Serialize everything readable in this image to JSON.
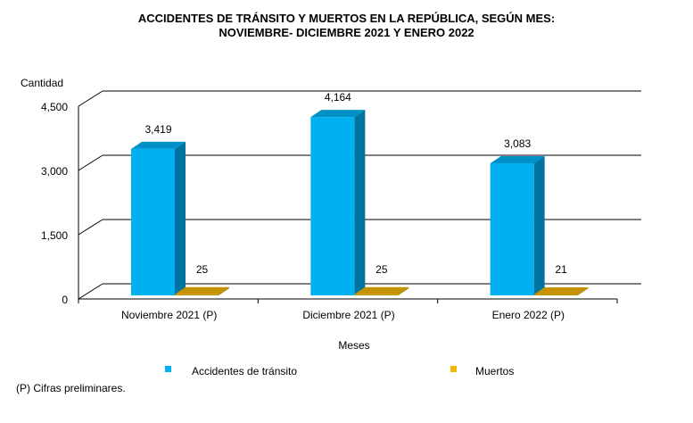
{
  "chart_data": {
    "type": "bar",
    "title": "ACCIDENTES DE TRÁNSITO Y MUERTOS EN LA REPÚBLICA, SEGÚN MES:",
    "subtitle": "NOVIEMBRE- DICIEMBRE 2021 Y ENERO 2022",
    "xlabel": "Meses",
    "ylabel": "Cantidad",
    "ylim": [
      0,
      4500
    ],
    "yticks": [
      0,
      1500,
      3000,
      4500
    ],
    "ytick_labels": [
      "0",
      "1,500",
      "3,000",
      "4,500"
    ],
    "grid": true,
    "style": "3d-clustered-column",
    "legend_position": "bottom",
    "categories": [
      "Noviembre 2021 (P)",
      "Diciembre 2021 (P)",
      "Enero 2022 (P)"
    ],
    "series": [
      {
        "name": "Accidentes de tránsito",
        "color": "#00B0F0",
        "values": [
          3419,
          4164,
          3083
        ],
        "labels": [
          "3,419",
          "4,164",
          "3,083"
        ]
      },
      {
        "name": "Muertos",
        "color": "#C59300",
        "legend_color": "#F2B800",
        "values": [
          25,
          25,
          21
        ],
        "labels": [
          "25",
          "25",
          "21"
        ]
      }
    ]
  },
  "footnote": "(P) Cifras preliminares."
}
